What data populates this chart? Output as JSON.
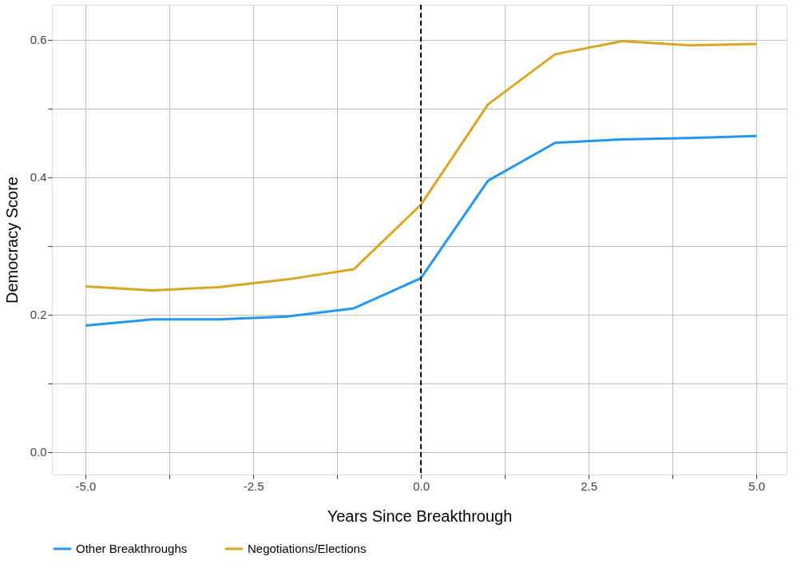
{
  "chart_data": {
    "type": "line",
    "xlabel": "Years Since Breakthrough",
    "ylabel": "Democracy Score",
    "x": [
      -5,
      -4,
      -3,
      -2,
      -1,
      0,
      1,
      2,
      3,
      4,
      5
    ],
    "series": [
      {
        "name": "Other Breakthroughs",
        "color": "#2196f3",
        "values": [
          0.184,
          0.193,
          0.193,
          0.197,
          0.209,
          0.253,
          0.395,
          0.45,
          0.455,
          0.457,
          0.46
        ]
      },
      {
        "name": "Negotiations/Elections",
        "color": "#daa520",
        "values": [
          0.241,
          0.235,
          0.24,
          0.251,
          0.266,
          0.36,
          0.506,
          0.579,
          0.598,
          0.592,
          0.594
        ]
      }
    ],
    "xlim": [
      -5.5,
      5.45
    ],
    "ylim": [
      -0.033,
      0.651
    ],
    "xticks": [
      {
        "value": -5,
        "label": "-5.0"
      },
      {
        "value": -3.75,
        "label": null
      },
      -2.5,
      {
        "value": -1.25,
        "label": null
      },
      {
        "value": 0,
        "label": "0.0"
      },
      {
        "value": 1.25,
        "label": null
      },
      2.5,
      {
        "value": 3.75,
        "label": null
      },
      {
        "value": 5,
        "label": "5.0"
      }
    ],
    "yticks": [
      {
        "value": 0,
        "label": "0.0"
      },
      {
        "value": 0.1,
        "label": null
      },
      0.2,
      {
        "value": 0.3,
        "label": null
      },
      0.4,
      {
        "value": 0.5,
        "label": null
      },
      0.6
    ],
    "ref_lines": [
      {
        "axis": "x",
        "value": 0,
        "color": "#000000",
        "line_style": "dashed"
      }
    ],
    "grid": true,
    "legend": "bottom",
    "marker": "none",
    "line_style": "solid"
  }
}
